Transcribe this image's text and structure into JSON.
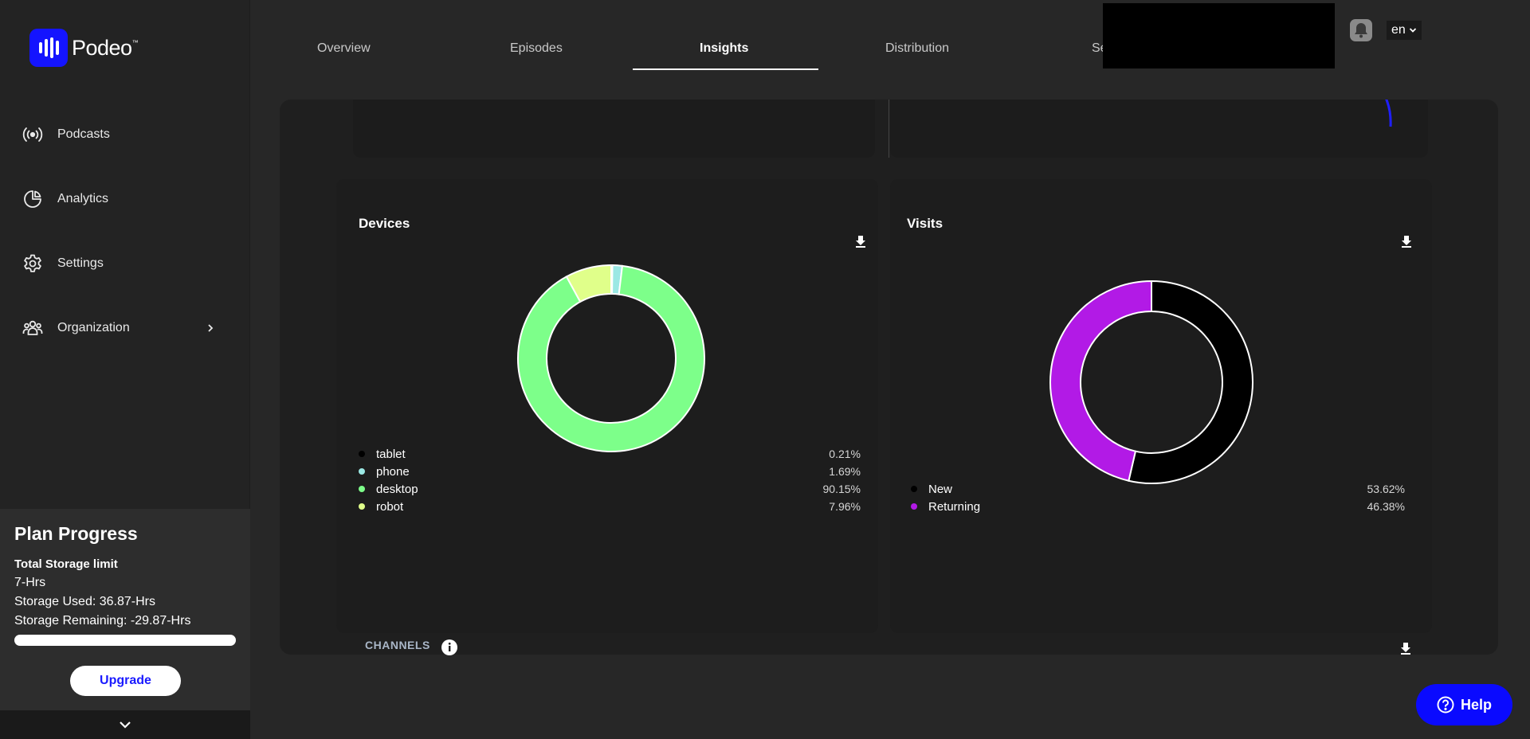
{
  "brand": {
    "name": "Podeo",
    "tm": "™",
    "accent": "#1414ff"
  },
  "sidebar": {
    "items": [
      {
        "label": "Podcasts",
        "icon": "podcast-broadcast-icon"
      },
      {
        "label": "Analytics",
        "icon": "pie-chart-icon"
      },
      {
        "label": "Settings",
        "icon": "gear-icon"
      },
      {
        "label": "Organization",
        "icon": "users-group-icon"
      }
    ],
    "plan": {
      "title": "Plan Progress",
      "storage_limit_label": "Total Storage limit",
      "storage_limit_value": "7-Hrs",
      "storage_used": "Storage Used: 36.87-Hrs",
      "storage_remaining": "Storage Remaining: -29.87-Hrs",
      "progress": 1.0,
      "upgrade_label": "Upgrade"
    }
  },
  "tabs": [
    {
      "label": "Overview"
    },
    {
      "label": "Episodes"
    },
    {
      "label": "Insights",
      "active": true
    },
    {
      "label": "Distribution"
    },
    {
      "label": "Se"
    }
  ],
  "header": {
    "language": "en"
  },
  "devices": {
    "title": "Devices",
    "items": [
      {
        "label": "tablet",
        "value": "0.21%",
        "color": "#000000"
      },
      {
        "label": "phone",
        "value": "1.69%",
        "color": "#9be8e4"
      },
      {
        "label": "desktop",
        "value": "90.15%",
        "color": "#7dff8a"
      },
      {
        "label": "robot",
        "value": "7.96%",
        "color": "#e0ff8a"
      }
    ]
  },
  "visits": {
    "title": "Visits",
    "items": [
      {
        "label": "New",
        "value": "53.62%",
        "color": "#000000"
      },
      {
        "label": "Returning",
        "value": "46.38%",
        "color": "#b21ae6"
      }
    ]
  },
  "chart_data": [
    {
      "type": "pie",
      "title": "Devices",
      "categories": [
        "tablet",
        "phone",
        "desktop",
        "robot"
      ],
      "values": [
        0.21,
        1.69,
        90.15,
        7.96
      ],
      "colors": [
        "#000000",
        "#9be8e4",
        "#7dff8a",
        "#e0ff8a"
      ]
    },
    {
      "type": "pie",
      "title": "Visits",
      "categories": [
        "New",
        "Returning"
      ],
      "values": [
        53.62,
        46.38
      ],
      "colors": [
        "#000000",
        "#b21ae6"
      ]
    }
  ],
  "channels": {
    "label": "CHANNELS"
  },
  "help": {
    "label": "Help"
  }
}
